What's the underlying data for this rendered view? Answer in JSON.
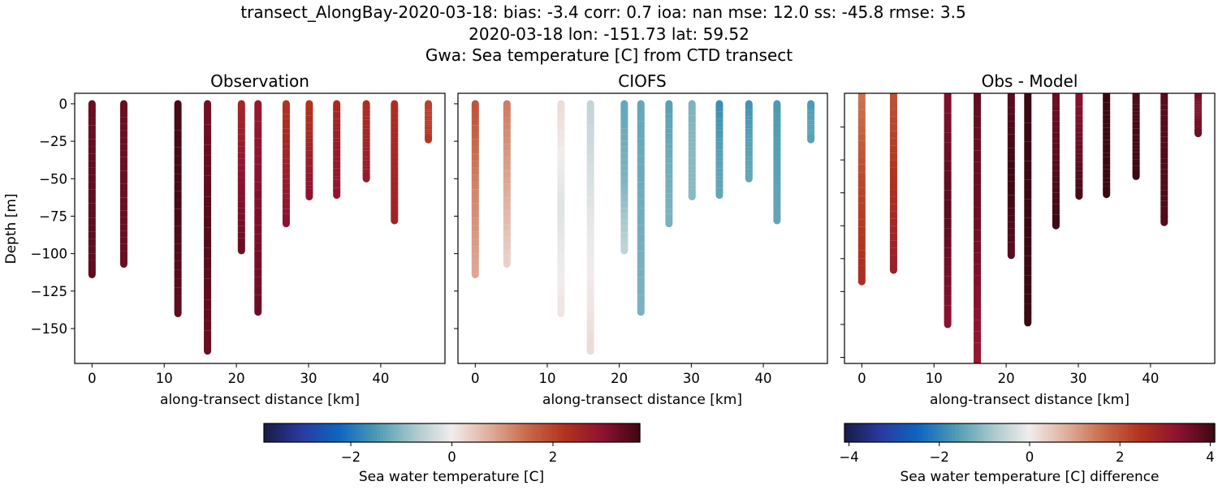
{
  "chart_data": {
    "type": "scatter",
    "title_lines": [
      "transect_AlongBay-2020-03-18: bias: -3.4  corr: 0.7  ioa: nan  mse: 12.0  ss: -45.8  rmse: 3.5",
      "2020-03-18 lon: -151.73 lat: 59.52",
      "Gwa: Sea temperature [C] from CTD transect"
    ],
    "panels": [
      {
        "title": "Observation",
        "field": "obs",
        "xlabel": "along-transect distance [km]",
        "ylabel": "Depth [m]",
        "xlim": [
          -2.4,
          48.9
        ],
        "ylim": [
          -173.3,
          7
        ],
        "xticks": [
          0,
          10,
          20,
          30,
          40
        ],
        "yticks": [
          0,
          -25,
          -50,
          -75,
          -100,
          -125,
          -150
        ],
        "ytick_labels": [
          "0",
          "−25",
          "−50",
          "−75",
          "−100",
          "−125",
          "−150"
        ],
        "show_ytick_labels": true
      },
      {
        "title": "CIOFS",
        "field": "model",
        "xlabel": "along-transect distance [km]",
        "ylabel": "",
        "xlim": [
          -2.4,
          48.9
        ],
        "ylim": [
          -173.3,
          7
        ],
        "xticks": [
          0,
          10,
          20,
          30,
          40
        ],
        "yticks": [
          0,
          -25,
          -50,
          -75,
          -100,
          -125,
          -150
        ],
        "show_ytick_labels": false
      },
      {
        "title": "Obs - Model",
        "field": "diff",
        "xlabel": "along-transect distance [km]",
        "ylabel": "",
        "xlim": [
          -2.4,
          48.9
        ],
        "ylim": [
          -163.7,
          0.5
        ],
        "xticks": [
          0,
          10,
          20,
          30,
          40
        ],
        "yticks": [
          -20,
          -40,
          -60,
          -80,
          -100,
          -120,
          -140,
          -160
        ],
        "show_ytick_labels": false
      }
    ],
    "xtick_labels": [
      "0",
      "10",
      "20",
      "30",
      "40"
    ],
    "profiles": [
      {
        "x": 0.0,
        "max_depth": -114,
        "obs": [
          3.3,
          3.4,
          3.4
        ],
        "model": [
          1.8,
          1.2,
          0.8
        ]
      },
      {
        "x": 4.4,
        "max_depth": -107,
        "obs": [
          3.3,
          3.3,
          3.3
        ],
        "model": [
          1.3,
          0.8,
          0.3
        ]
      },
      {
        "x": 11.9,
        "max_depth": -140,
        "obs": [
          3.6,
          3.6,
          3.4
        ],
        "model": [
          0.2,
          -0.2,
          0.1
        ]
      },
      {
        "x": 16.0,
        "max_depth": -165,
        "obs": [
          3.2,
          3.5,
          3.3
        ],
        "model": [
          -0.5,
          -0.1,
          0.2
        ]
      },
      {
        "x": 20.7,
        "max_depth": -98,
        "obs": [
          2.5,
          3.0,
          3.3
        ],
        "model": [
          -1.3,
          -1.1,
          -0.5
        ]
      },
      {
        "x": 23.0,
        "max_depth": -139,
        "obs": [
          2.8,
          3.1,
          3.3
        ],
        "model": [
          -1.3,
          -1.2,
          -1.1
        ]
      },
      {
        "x": 26.9,
        "max_depth": -80,
        "obs": [
          2.2,
          2.6,
          3.0
        ],
        "model": [
          -1.4,
          -1.2,
          -1.1
        ]
      },
      {
        "x": 30.1,
        "max_depth": -62,
        "obs": [
          2.2,
          2.6,
          3.0
        ],
        "model": [
          -1.1,
          -1.0,
          -1.0
        ]
      },
      {
        "x": 33.9,
        "max_depth": -61,
        "obs": [
          2.4,
          2.8,
          2.9
        ],
        "model": [
          -1.7,
          -1.4,
          -1.3
        ]
      },
      {
        "x": 38.0,
        "max_depth": -50,
        "obs": [
          2.3,
          2.6,
          2.8
        ],
        "model": [
          -1.6,
          -1.4,
          -1.3
        ]
      },
      {
        "x": 41.9,
        "max_depth": -78,
        "obs": [
          2.3,
          2.5,
          2.6
        ],
        "model": [
          -1.5,
          -1.4,
          -1.3
        ]
      },
      {
        "x": 46.6,
        "max_depth": -24,
        "obs": [
          2.0,
          2.1,
          2.2
        ],
        "model": [
          -1.5,
          -1.4,
          -1.4
        ]
      }
    ],
    "colorbars": [
      {
        "label": "Sea water temperature [C]",
        "range": [
          -3.72,
          3.72
        ],
        "ticks": [
          -2,
          0,
          2
        ],
        "tick_labels": [
          "−2",
          "0",
          "2"
        ]
      },
      {
        "label": "Sea water temperature [C] difference",
        "range": [
          -4.1,
          4.1
        ],
        "ticks": [
          -4,
          -2,
          0,
          2,
          4
        ],
        "tick_labels": [
          "−4",
          "−2",
          "0",
          "2",
          "4"
        ]
      }
    ],
    "colormap": "balance",
    "colormap_stops": [
      "#181c43",
      "#2a3aa0",
      "#0d66c0",
      "#4d9bb3",
      "#a9c8cc",
      "#f1ecec",
      "#dfae9c",
      "#c86a4b",
      "#b2321f",
      "#8e1230",
      "#3c0912"
    ],
    "grid": false
  }
}
